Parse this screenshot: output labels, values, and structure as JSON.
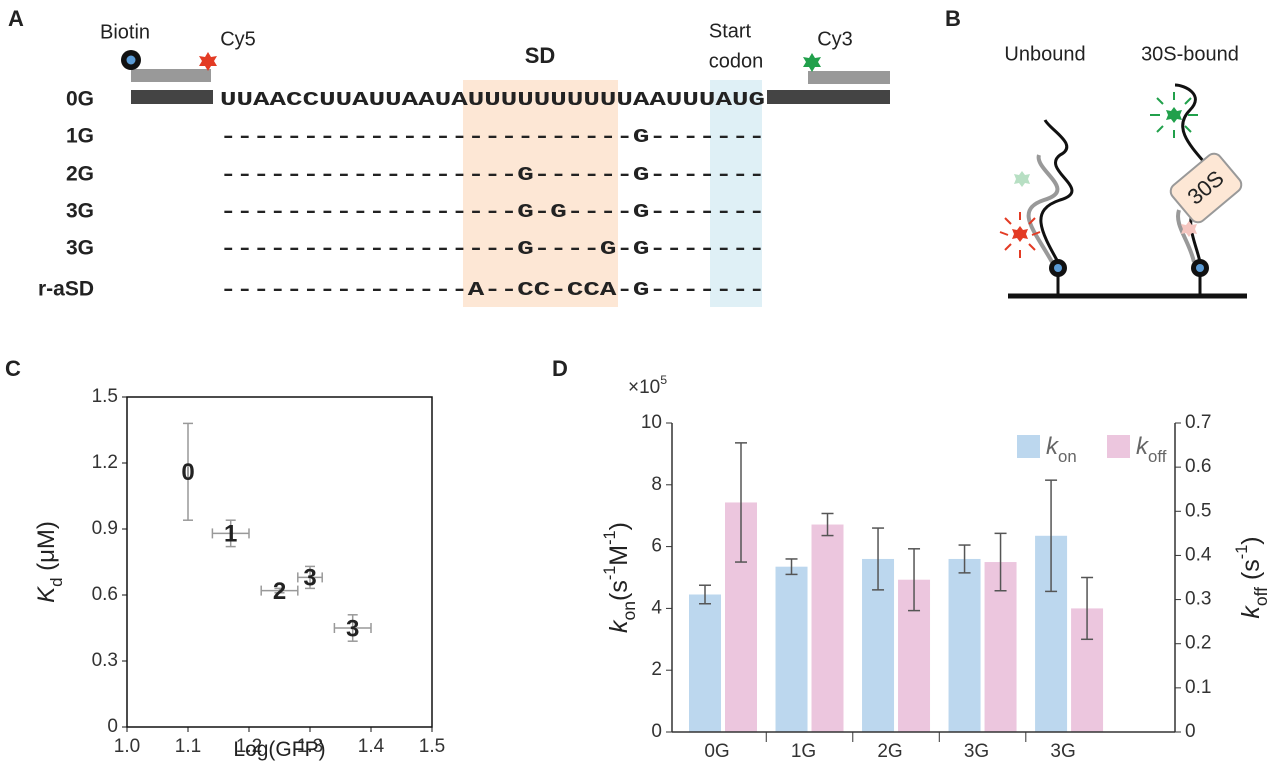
{
  "panel_a": {
    "letter": "A",
    "biotin": "Biotin",
    "cy5": "Cy5",
    "sd": "SD",
    "start_codon": [
      "Start",
      "codon"
    ],
    "cy3": "Cy3",
    "rows": [
      {
        "name": "0G",
        "sequence": "UUAACCUUAUUAAUAUUUUUUUUUUAAUUUAUG",
        "color": "#111111"
      },
      {
        "name": "1G",
        "sequence": "-------------------------G-------",
        "color": "#111111"
      },
      {
        "name": "2G",
        "sequence": "------------------G------G-------",
        "color": "#111111"
      },
      {
        "name": "3G",
        "sequence": "------------------G-G----G-------",
        "color": "#29a8e0"
      },
      {
        "name": "3G",
        "sequence": "------------------G----G-G-------",
        "color": "#e02020"
      },
      {
        "name": "r-aSD",
        "sequence": "---------------A--CC-CCA-G-------",
        "color": "#111111"
      }
    ]
  },
  "panel_b": {
    "letter": "B",
    "unbound": "Unbound",
    "bound": "30S-bound",
    "ribosome": "30S"
  },
  "chart_data": [
    {
      "letter": "C",
      "type": "scatter",
      "x": [
        1.1,
        1.17,
        1.25,
        1.3,
        1.37
      ],
      "x_errors": [
        0,
        0.03,
        0.03,
        0.02,
        0.03
      ],
      "values": [
        1.16,
        0.88,
        0.62,
        0.68,
        0.45
      ],
      "errors": [
        0.22,
        0.06,
        0.01,
        0.05,
        0.06
      ],
      "labels": [
        "0",
        "1",
        "2",
        "3",
        "3"
      ],
      "label_colors": [
        "#111111",
        "#111111",
        "#111111",
        "#29a8e0",
        "#e02020"
      ],
      "error_color": "#999999",
      "xlim": [
        1.0,
        1.5
      ],
      "xticks": [
        {
          "value": 1.0,
          "label": "1.0"
        },
        1.1,
        1.2,
        1.3,
        1.4,
        1.5
      ],
      "ylim": [
        0,
        1.5
      ],
      "yticks": [
        0,
        0.3,
        0.6,
        0.9,
        1.2,
        1.5
      ],
      "x_label": [
        {
          "text": "Log(GFP)"
        }
      ],
      "y_label": [
        {
          "text": "K",
          "style": "italic"
        },
        {
          "text": "d",
          "style": "sub"
        },
        {
          "text": " (μM)"
        }
      ]
    },
    {
      "letter": "D",
      "type": "bar",
      "categories": [
        "0G",
        "1G",
        "2G",
        "3G",
        "3G"
      ],
      "category_colors": [
        "#666666",
        "#666666",
        "#666666",
        "#29a8e0",
        "#e02020"
      ],
      "scale_label": [
        {
          "text": "×10"
        },
        {
          "text": "5",
          "style": "sup"
        }
      ],
      "series": [
        {
          "name": [
            {
              "text": "k",
              "style": "italic"
            },
            {
              "text": "on",
              "style": "sub"
            }
          ],
          "color": "#bcd7ee",
          "values": [
            4.45,
            5.35,
            5.6,
            5.6,
            6.35
          ],
          "errors": [
            0.3,
            0.25,
            1.0,
            0.45,
            1.8
          ]
        },
        {
          "name": [
            {
              "text": "k",
              "style": "italic"
            },
            {
              "text": "off",
              "style": "sub"
            }
          ],
          "color": "#ecc6de",
          "axis": "y2",
          "values": [
            0.52,
            0.47,
            0.345,
            0.385,
            0.28
          ],
          "errors": [
            0.135,
            0.025,
            0.07,
            0.065,
            0.07
          ]
        }
      ],
      "error_color": "#555555",
      "ylim": [
        0,
        10
      ],
      "yticks": [
        0,
        2,
        4,
        6,
        8,
        10
      ],
      "y2lim": [
        0,
        0.7
      ],
      "y2ticks": [
        0,
        0.1,
        0.2,
        0.3,
        0.4,
        0.5,
        0.6,
        0.7
      ],
      "y_label": [
        {
          "text": "k",
          "style": "italic"
        },
        {
          "text": "on",
          "style": "sub"
        },
        {
          "text": "(s"
        },
        {
          "text": "-1",
          "style": "sup"
        },
        {
          "text": "M"
        },
        {
          "text": "-1",
          "style": "sup"
        },
        {
          "text": ")"
        }
      ],
      "y2_label": [
        {
          "text": "k",
          "style": "italic"
        },
        {
          "text": "off",
          "style": "sub"
        },
        {
          "text": " (s"
        },
        {
          "text": "-1",
          "style": "sup"
        },
        {
          "text": ")"
        }
      ]
    }
  ]
}
